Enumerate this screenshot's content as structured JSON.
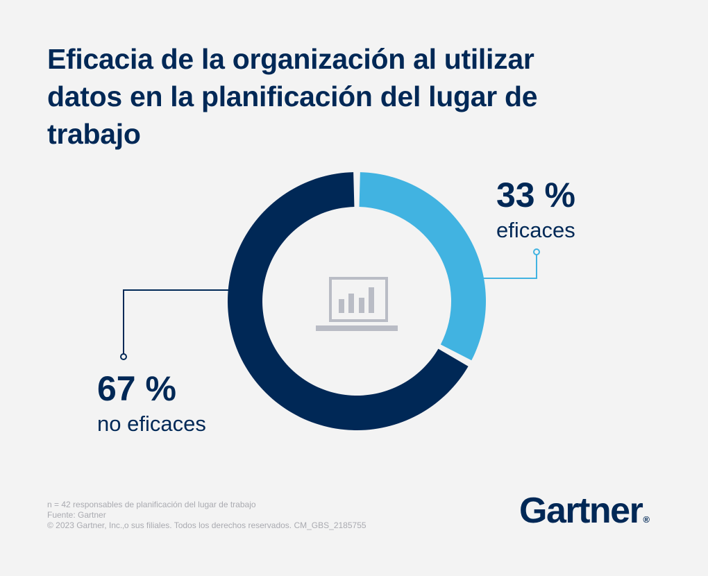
{
  "title": "Eficacia de la organización al utilizar datos en la planificación del lugar de trabajo",
  "chart_data": {
    "type": "pie",
    "categories": [
      "eficaces",
      "no eficaces"
    ],
    "values": [
      33,
      67
    ],
    "value_labels": [
      "33 %",
      "67 %"
    ],
    "colors": [
      "#41b3e1",
      "#002856"
    ],
    "center_icon": "laptop-bar-chart-icon"
  },
  "footnotes": {
    "sample": "n = 42 responsables de planificación del lugar de trabajo",
    "source": "Fuente: Gartner",
    "copyright": "© 2023 Gartner, Inc.‚o sus filiales. Todos los derechos reservados. CM_GBS_2185755"
  },
  "logo": {
    "text": "Gartner",
    "registered": "®"
  }
}
